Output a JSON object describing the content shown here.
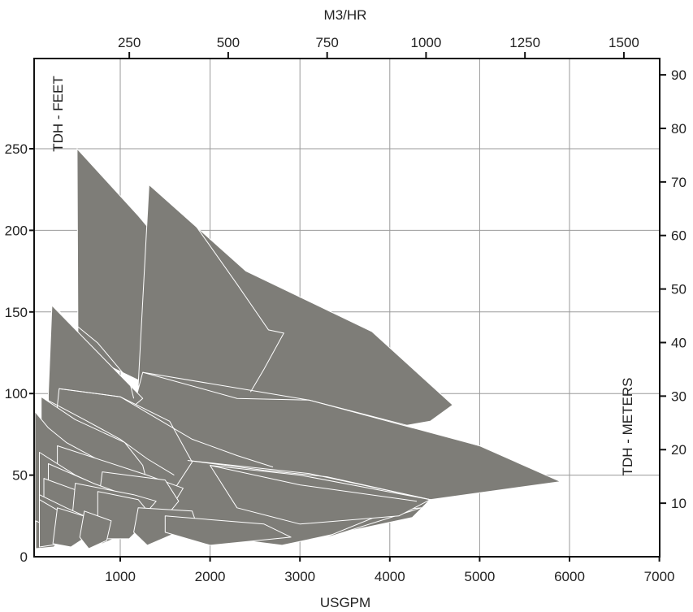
{
  "chart_data": {
    "type": "area",
    "title": "",
    "xlabel": "USGPM",
    "x2label": "M3/HR",
    "ylabel": "TDH - FEET",
    "y2label": "TDH - METERS",
    "xlim": [
      36,
      7000
    ],
    "ylim": [
      0,
      300
    ],
    "x_ticks": [
      1000,
      2000,
      3000,
      4000,
      5000,
      6000,
      7000
    ],
    "y_ticks": [
      0,
      50,
      100,
      150,
      200,
      250
    ],
    "x2_ticks": [
      250,
      500,
      750,
      1000,
      1250,
      1500
    ],
    "y2_ticks": [
      10,
      20,
      30,
      40,
      50,
      60,
      70,
      80,
      90
    ],
    "grid": true,
    "fill_color": "#7e7d78",
    "edge_color": "#ffffff",
    "series": [
      {
        "polygon": [
          [
            520,
            250
          ],
          [
            1200,
            209
          ],
          [
            1520,
            188
          ],
          [
            2400,
            135
          ],
          [
            3700,
            99
          ],
          [
            4680,
            93
          ],
          [
            4200,
            81
          ],
          [
            3300,
            75
          ],
          [
            2600,
            74
          ],
          [
            1400,
            103
          ],
          [
            530,
            126
          ]
        ]
      },
      {
        "polygon": [
          [
            1320,
            228
          ],
          [
            2400,
            175
          ],
          [
            3800,
            138
          ],
          [
            4700,
            93
          ],
          [
            4450,
            83
          ],
          [
            3600,
            75
          ],
          [
            2600,
            70
          ],
          [
            2000,
            78
          ],
          [
            1650,
            88
          ],
          [
            1300,
            96
          ],
          [
            1200,
            105
          ]
        ]
      },
      {
        "polygon": [
          [
            1250,
            113
          ],
          [
            3100,
            96
          ],
          [
            5000,
            68
          ],
          [
            5900,
            46
          ],
          [
            4450,
            35
          ],
          [
            3100,
            42
          ],
          [
            2500,
            48
          ],
          [
            1700,
            57
          ],
          [
            1200,
            80
          ],
          [
            1150,
            92
          ]
        ]
      },
      {
        "polygon": [
          [
            1750,
            59
          ],
          [
            3100,
            51
          ],
          [
            4450,
            35
          ],
          [
            4250,
            24
          ],
          [
            2800,
            7
          ],
          [
            1950,
            13
          ],
          [
            1150,
            18
          ]
        ]
      },
      {
        "polygon": [
          [
            3200,
            10
          ],
          [
            4350,
            30
          ],
          [
            4000,
            28
          ]
        ]
      },
      {
        "polygon": [
          [
            240,
            154
          ],
          [
            1250,
            97
          ],
          [
            1100,
            90
          ],
          [
            420,
            82
          ],
          [
            200,
            73
          ],
          [
            200,
            100
          ]
        ]
      },
      {
        "polygon": [
          [
            320,
            103
          ],
          [
            1000,
            98
          ],
          [
            1550,
            83
          ],
          [
            1800,
            58
          ],
          [
            1550,
            37
          ],
          [
            1150,
            25
          ],
          [
            750,
            22
          ],
          [
            200,
            40
          ]
        ]
      },
      {
        "polygon": [
          [
            120,
            98
          ],
          [
            500,
            84
          ],
          [
            1050,
            70
          ],
          [
            1250,
            56
          ],
          [
            1300,
            45
          ],
          [
            900,
            28
          ],
          [
            400,
            22
          ],
          [
            120,
            30
          ]
        ]
      },
      {
        "polygon": [
          [
            50,
            89
          ],
          [
            200,
            79
          ],
          [
            400,
            70
          ],
          [
            800,
            58
          ],
          [
            1000,
            45
          ],
          [
            800,
            30
          ],
          [
            350,
            20
          ],
          [
            50,
            16
          ]
        ]
      },
      {
        "polygon": [
          [
            300,
            68
          ],
          [
            1300,
            50
          ],
          [
            1700,
            42
          ],
          [
            1500,
            24
          ],
          [
            800,
            25
          ],
          [
            300,
            32
          ]
        ]
      },
      {
        "polygon": [
          [
            100,
            64
          ],
          [
            500,
            50
          ],
          [
            900,
            40
          ],
          [
            700,
            25
          ],
          [
            400,
            15
          ],
          [
            100,
            20
          ]
        ]
      },
      {
        "polygon": [
          [
            800,
            52
          ],
          [
            1500,
            47
          ],
          [
            1650,
            34
          ],
          [
            1350,
            14
          ],
          [
            900,
            16
          ],
          [
            750,
            30
          ]
        ]
      },
      {
        "polygon": [
          [
            200,
            57
          ],
          [
            700,
            45
          ],
          [
            1050,
            38
          ],
          [
            850,
            20
          ],
          [
            400,
            12
          ],
          [
            200,
            18
          ]
        ]
      },
      {
        "polygon": [
          [
            150,
            48
          ],
          [
            550,
            40
          ],
          [
            750,
            30
          ],
          [
            500,
            12
          ],
          [
            150,
            10
          ]
        ]
      },
      {
        "polygon": [
          [
            500,
            45
          ],
          [
            1150,
            38
          ],
          [
            1400,
            34
          ],
          [
            1100,
            15
          ],
          [
            800,
            8
          ],
          [
            450,
            15
          ]
        ]
      },
      {
        "polygon": [
          [
            100,
            38
          ],
          [
            400,
            30
          ],
          [
            600,
            25
          ],
          [
            380,
            10
          ],
          [
            100,
            8
          ]
        ]
      },
      {
        "polygon": [
          [
            60,
            22
          ],
          [
            250,
            17
          ],
          [
            400,
            14
          ],
          [
            260,
            6
          ],
          [
            60,
            5
          ]
        ]
      },
      {
        "polygon": [
          [
            100,
            35
          ],
          [
            350,
            27
          ],
          [
            500,
            22
          ],
          [
            350,
            8
          ],
          [
            100,
            6
          ]
        ]
      },
      {
        "polygon": [
          [
            750,
            40
          ],
          [
            1200,
            35
          ],
          [
            1350,
            25
          ],
          [
            1100,
            11
          ],
          [
            750,
            11
          ]
        ]
      },
      {
        "polygon": [
          [
            2000,
            56
          ],
          [
            3000,
            50
          ],
          [
            4450,
            35
          ],
          [
            4100,
            25
          ],
          [
            3000,
            20
          ],
          [
            2300,
            30
          ]
        ]
      },
      {
        "polygon": [
          [
            1200,
            30
          ],
          [
            1800,
            28
          ],
          [
            1850,
            20
          ],
          [
            1300,
            7
          ],
          [
            1150,
            15
          ]
        ]
      },
      {
        "polygon": [
          [
            1500,
            25
          ],
          [
            2600,
            20
          ],
          [
            2900,
            12
          ],
          [
            2000,
            7
          ],
          [
            1500,
            15
          ]
        ]
      },
      {
        "polygon": [
          [
            300,
            30
          ],
          [
            650,
            24
          ],
          [
            700,
            15
          ],
          [
            450,
            6
          ],
          [
            250,
            8
          ]
        ]
      },
      {
        "polygon": [
          [
            600,
            28
          ],
          [
            900,
            22
          ],
          [
            850,
            10
          ],
          [
            650,
            5
          ],
          [
            550,
            12
          ]
        ]
      }
    ],
    "inner_curves": [
      [
        [
          1320,
          228
        ],
        [
          1800,
          206
        ],
        [
          2300,
          167
        ],
        [
          2650,
          139
        ],
        [
          2820,
          137
        ],
        [
          2600,
          115
        ],
        [
          2450,
          101
        ]
      ],
      [
        [
          240,
          154
        ],
        [
          750,
          131
        ],
        [
          1100,
          108
        ],
        [
          1150,
          97
        ]
      ],
      [
        [
          1250,
          113
        ],
        [
          2300,
          97
        ],
        [
          3100,
          96
        ],
        [
          4300,
          79
        ],
        [
          5000,
          68
        ]
      ],
      [
        [
          320,
          103
        ],
        [
          1000,
          98
        ],
        [
          1400,
          85
        ],
        [
          1800,
          72
        ],
        [
          2300,
          62
        ],
        [
          2700,
          55
        ]
      ],
      [
        [
          120,
          98
        ],
        [
          600,
          84
        ],
        [
          1000,
          72
        ],
        [
          1300,
          60
        ],
        [
          1600,
          50
        ]
      ],
      [
        [
          1750,
          59
        ],
        [
          2600,
          53
        ],
        [
          3300,
          49
        ],
        [
          4450,
          35
        ]
      ],
      [
        [
          2000,
          56
        ],
        [
          3000,
          44
        ],
        [
          4300,
          34
        ]
      ]
    ]
  }
}
